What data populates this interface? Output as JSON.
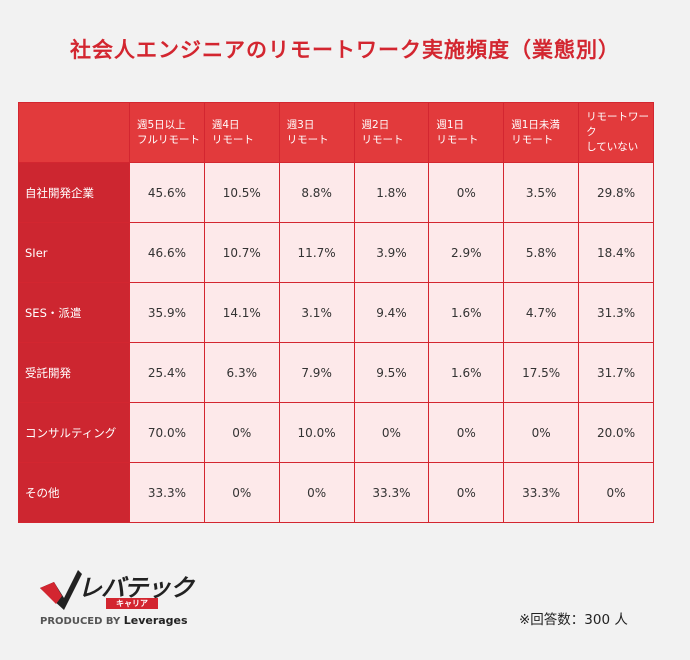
{
  "title": "社会人エンジニアのリモートワーク実施頻度（業態別）",
  "chart_data": {
    "type": "table",
    "columns": [
      "週5日以上\nフルリモート",
      "週4日\nリモート",
      "週3日\nリモート",
      "週2日\nリモート",
      "週1日\nリモート",
      "週1日未満\nリモート",
      "リモートワーク\nしていない"
    ],
    "rows": [
      {
        "label": "自社開発企業",
        "values": [
          "45.6%",
          "10.5%",
          "8.8%",
          "1.8%",
          "0%",
          "3.5%",
          "29.8%"
        ]
      },
      {
        "label": "SIer",
        "values": [
          "46.6%",
          "10.7%",
          "11.7%",
          "3.9%",
          "2.9%",
          "5.8%",
          "18.4%"
        ]
      },
      {
        "label": "SES・派遣",
        "values": [
          "35.9%",
          "14.1%",
          "3.1%",
          "9.4%",
          "1.6%",
          "4.7%",
          "31.3%"
        ]
      },
      {
        "label": "受託開発",
        "values": [
          "25.4%",
          "6.3%",
          "7.9%",
          "9.5%",
          "1.6%",
          "17.5%",
          "31.7%"
        ]
      },
      {
        "label": "コンサルティング",
        "values": [
          "70.0%",
          "0%",
          "10.0%",
          "0%",
          "0%",
          "0%",
          "20.0%"
        ]
      },
      {
        "label": "その他",
        "values": [
          "33.3%",
          "0%",
          "0%",
          "33.3%",
          "0%",
          "33.3%",
          "0%"
        ]
      }
    ]
  },
  "logo": {
    "name": "レバテック",
    "sub": "キャリア",
    "produced_prefix": "PRODUCED BY",
    "produced_brand": "Leverages"
  },
  "note": "※回答数：300 人",
  "colors": {
    "accent": "#d32630",
    "header": "#e23a3c",
    "cell": "#fde9ea"
  }
}
